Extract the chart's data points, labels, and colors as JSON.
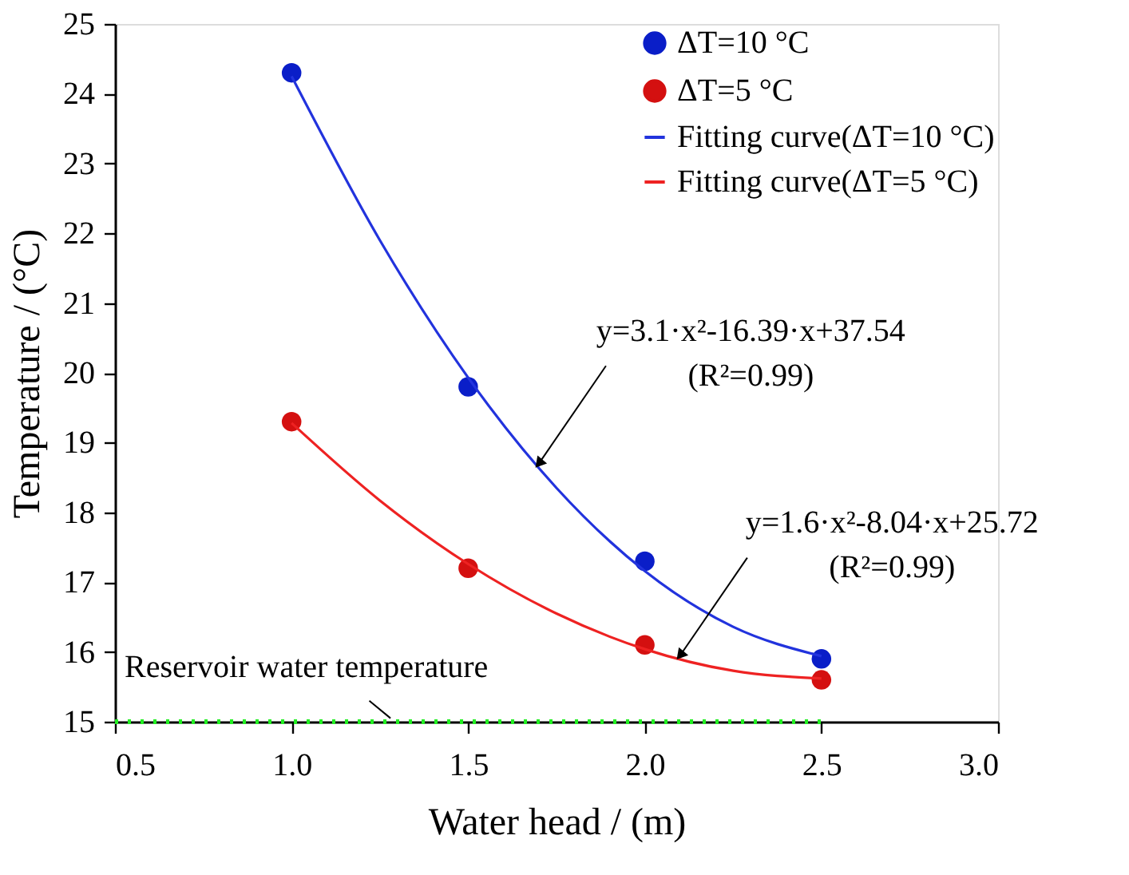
{
  "chart_data": {
    "type": "scatter",
    "xlabel": "Water head / (m)",
    "ylabel": "Temperature / (°C)",
    "xlim": [
      0.5,
      3.0
    ],
    "xticks": [
      {
        "value": 0.5,
        "label": "0.5"
      },
      {
        "value": 1.0,
        "label": "1.0"
      },
      {
        "value": 1.5,
        "label": "1.5"
      },
      {
        "value": 2.0,
        "label": "2.0"
      },
      {
        "value": 2.5,
        "label": "2.5"
      },
      {
        "value": 3.0,
        "label": "3.0"
      }
    ],
    "ylim": [
      15,
      25
    ],
    "yticks": [
      15,
      16,
      17,
      18,
      19,
      20,
      21,
      22,
      23,
      24,
      25
    ],
    "series": [
      {
        "name": "ΔT=10 °C",
        "color": "#0a1ec8",
        "marker": "circle",
        "x": [
          1.0,
          1.5,
          2.0,
          2.5
        ],
        "values": [
          24.3,
          19.8,
          17.3,
          15.9
        ]
      },
      {
        "name": "ΔT=5 °C",
        "color": "#d41010",
        "marker": "circle",
        "x": [
          1.0,
          1.5,
          2.0,
          2.5
        ],
        "values": [
          19.3,
          17.2,
          16.1,
          15.6
        ]
      },
      {
        "name": "Fitting curve(ΔT=10 °C)",
        "type": "line",
        "color": "#2233dd",
        "line_style": "solid",
        "x": [
          1.0,
          1.25,
          1.5,
          1.75,
          2.0,
          2.25,
          2.5
        ],
        "values": [
          24.25,
          21.9,
          19.93,
          18.35,
          17.16,
          16.36,
          15.94
        ]
      },
      {
        "name": "Fitting curve(ΔT=5 °C)",
        "type": "line",
        "color": "#ee2222",
        "line_style": "solid",
        "x": [
          1.0,
          1.25,
          1.5,
          1.75,
          2.0,
          2.25,
          2.5
        ],
        "values": [
          19.28,
          18.17,
          17.26,
          16.55,
          16.04,
          15.73,
          15.62
        ]
      }
    ],
    "ref_lines": [
      {
        "axis": "y",
        "value": 15,
        "label": "Reservoir water temperature",
        "color": "#22ee22",
        "line_style": "dotted"
      }
    ],
    "annotations": [
      {
        "text": "y=3.1·x²-16.39·x+37.54\n(R²=0.99)",
        "x": 1.7,
        "y": 18.7
      },
      {
        "text": "y=1.6·x²-8.04·x+25.72\n(R²=0.99)",
        "x": 2.1,
        "y": 15.95
      }
    ],
    "legend": "top right",
    "grid": false
  }
}
